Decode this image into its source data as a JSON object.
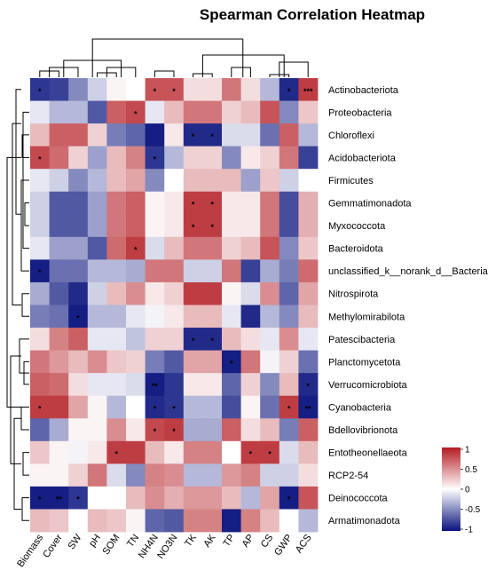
{
  "chart_data": {
    "type": "heatmap",
    "title": "Spearman Correlation Heatmap",
    "columns": [
      "Biomass",
      "Cover",
      "SW",
      "pH",
      "SOM",
      "TN",
      "NH4N",
      "NO3N",
      "TK",
      "AK",
      "TP",
      "AP",
      "CS",
      "GWP",
      "ACS"
    ],
    "rows": [
      "Actinobacteriota",
      "Proteobacteria",
      "Chloroflexi",
      "Acidobacteriota",
      "Firmicutes",
      "Gemmatimonadota",
      "Myxococcota",
      "Bacteroidota",
      "unclassified_k__norank_d__Bacteria",
      "Nitrospirota",
      "Methylomirabilota",
      "Patescibacteria",
      "Planctomycetota",
      "Verrucomicrobiota",
      "Cyanobacteria",
      "Bdellovibrionota",
      "Entotheonellaeota",
      "RCP2-54",
      "Deinococcota",
      "Armatimonadota"
    ],
    "values": [
      [
        -0.85,
        -0.8,
        -0.5,
        -0.2,
        0.05,
        0.0,
        0.75,
        0.75,
        0.15,
        0.15,
        0.6,
        0.15,
        -0.3,
        -0.9,
        0.85
      ],
      [
        -0.1,
        -0.3,
        -0.3,
        -0.7,
        0.7,
        0.8,
        -0.1,
        0.3,
        0.6,
        0.6,
        0.2,
        0.3,
        0.75,
        -0.5,
        0.25
      ],
      [
        0.3,
        0.7,
        0.7,
        0.2,
        -0.55,
        -0.65,
        -0.95,
        0.1,
        -0.9,
        -0.9,
        -0.15,
        -0.15,
        -0.6,
        0.7,
        -0.3
      ],
      [
        0.8,
        0.65,
        0.2,
        -0.4,
        0.3,
        0.55,
        -0.85,
        -0.3,
        0.2,
        0.2,
        -0.5,
        0.1,
        0.2,
        0.6,
        -0.8
      ],
      [
        -0.1,
        -0.2,
        -0.5,
        -0.3,
        0.3,
        0.4,
        -0.5,
        0.0,
        0.3,
        0.3,
        0.3,
        -0.4,
        0.25,
        -0.2,
        0.0
      ],
      [
        -0.2,
        -0.7,
        -0.7,
        -0.4,
        0.6,
        0.7,
        0.05,
        0.1,
        0.85,
        0.85,
        0.1,
        0.1,
        0.6,
        -0.75,
        0.35
      ],
      [
        -0.2,
        -0.7,
        -0.7,
        -0.4,
        0.6,
        0.7,
        0.05,
        0.1,
        0.85,
        0.85,
        0.1,
        0.1,
        0.6,
        -0.75,
        0.35
      ],
      [
        -0.1,
        -0.4,
        -0.4,
        -0.7,
        0.65,
        0.85,
        -0.15,
        0.3,
        0.6,
        0.6,
        0.2,
        0.3,
        0.75,
        -0.5,
        0.25
      ],
      [
        -0.95,
        -0.6,
        -0.6,
        -0.3,
        -0.3,
        -0.35,
        0.6,
        0.6,
        -0.2,
        -0.2,
        0.6,
        -0.8,
        -0.35,
        -0.55,
        0.65
      ],
      [
        -0.35,
        -0.7,
        -0.9,
        -0.2,
        0.3,
        0.5,
        0.1,
        0.2,
        0.85,
        0.85,
        0.05,
        -0.15,
        0.5,
        -0.65,
        0.4
      ],
      [
        -0.55,
        -0.6,
        -0.95,
        -0.3,
        -0.3,
        -0.1,
        -0.05,
        0.1,
        0.3,
        0.3,
        -0.1,
        -0.9,
        -0.3,
        -0.5,
        0.3
      ],
      [
        0.15,
        0.55,
        0.7,
        -0.1,
        -0.1,
        -0.25,
        0.2,
        0.2,
        -0.9,
        -0.9,
        0.3,
        0.15,
        -0.1,
        0.5,
        -0.1
      ],
      [
        0.6,
        0.45,
        0.3,
        0.5,
        0.25,
        0.2,
        -0.55,
        -0.7,
        0.4,
        0.4,
        -0.95,
        0.6,
        -0.05,
        0.2,
        -0.6
      ],
      [
        0.7,
        0.65,
        0.15,
        -0.1,
        -0.1,
        -0.15,
        -0.95,
        -0.85,
        0.1,
        0.1,
        -0.65,
        0.2,
        -0.5,
        0.3,
        -0.9
      ],
      [
        0.85,
        0.85,
        0.4,
        0.05,
        -0.3,
        0.0,
        -0.9,
        -0.85,
        -0.3,
        -0.3,
        -0.75,
        0.05,
        -0.6,
        0.85,
        -0.95
      ],
      [
        -0.65,
        -0.35,
        0.05,
        0.05,
        0.5,
        0.1,
        0.8,
        0.85,
        -0.35,
        -0.35,
        0.7,
        0.15,
        0.3,
        -0.55,
        0.7
      ],
      [
        0.25,
        0.05,
        -0.05,
        0.1,
        0.85,
        0.85,
        0.3,
        0.1,
        0.55,
        0.55,
        0.0,
        0.85,
        0.85,
        -0.15,
        0.3
      ],
      [
        0.05,
        0.05,
        0.2,
        0.6,
        -0.15,
        -0.5,
        0.55,
        0.5,
        -0.3,
        -0.3,
        0.45,
        0.55,
        -0.2,
        -0.2,
        0.15
      ],
      [
        -0.95,
        -0.95,
        -0.85,
        0.0,
        0.0,
        0.3,
        0.5,
        0.35,
        0.45,
        0.45,
        0.3,
        -0.3,
        0.4,
        -0.95,
        0.75
      ],
      [
        0.3,
        0.25,
        0.0,
        0.3,
        0.25,
        0.05,
        -0.65,
        -0.7,
        0.55,
        0.55,
        -0.95,
        0.55,
        0.3,
        0.0,
        -0.3
      ]
    ],
    "significance": [
      [
        "*",
        "",
        "",
        "",
        "",
        "",
        "*",
        "*",
        "",
        "",
        "",
        "",
        "",
        "*",
        "***"
      ],
      [
        "",
        "",
        "",
        "",
        "",
        "*",
        "",
        "",
        "",
        "",
        "",
        "",
        "",
        "",
        ""
      ],
      [
        "",
        "",
        "",
        "",
        "",
        "",
        "",
        "",
        "*",
        "*",
        "",
        "",
        "",
        "",
        ""
      ],
      [
        "*",
        "",
        "",
        "",
        "",
        "",
        "*",
        "",
        "",
        "",
        "",
        "",
        "",
        "",
        ""
      ],
      [
        "",
        "",
        "",
        "",
        "",
        "",
        "",
        "",
        "",
        "",
        "",
        "",
        "",
        "",
        ""
      ],
      [
        "",
        "",
        "",
        "",
        "",
        "",
        "",
        "",
        "*",
        "*",
        "",
        "",
        "",
        "",
        ""
      ],
      [
        "",
        "",
        "",
        "",
        "",
        "",
        "",
        "",
        "*",
        "*",
        "",
        "",
        "",
        "",
        ""
      ],
      [
        "",
        "",
        "",
        "",
        "",
        "*",
        "",
        "",
        "",
        "",
        "",
        "",
        "",
        "",
        ""
      ],
      [
        "*",
        "",
        "",
        "",
        "",
        "",
        "",
        "",
        "",
        "",
        "",
        "",
        "",
        "",
        ""
      ],
      [
        "",
        "",
        "",
        "",
        "",
        "",
        "",
        "",
        "",
        "",
        "",
        "",
        "",
        "",
        ""
      ],
      [
        "",
        "",
        "*",
        "",
        "",
        "",
        "",
        "",
        "",
        "",
        "",
        "",
        "",
        "",
        ""
      ],
      [
        "",
        "",
        "",
        "",
        "",
        "",
        "",
        "",
        "*",
        "*",
        "",
        "",
        "",
        "",
        ""
      ],
      [
        "",
        "",
        "",
        "",
        "",
        "",
        "",
        "",
        "",
        "",
        "*",
        "",
        "",
        "",
        ""
      ],
      [
        "",
        "",
        "",
        "",
        "",
        "",
        "**",
        "",
        "",
        "",
        "",
        "",
        "",
        "",
        "*"
      ],
      [
        "*",
        "",
        "",
        "",
        "",
        "",
        "*",
        "*",
        "",
        "",
        "",
        "",
        "",
        "*",
        "**"
      ],
      [
        "",
        "",
        "",
        "",
        "",
        "",
        "*",
        "*",
        "",
        "",
        "",
        "",
        "",
        "",
        ""
      ],
      [
        "",
        "",
        "",
        "",
        "*",
        "",
        "",
        "",
        "",
        "",
        "",
        "*",
        "*",
        "",
        ""
      ],
      [
        "",
        "",
        "",
        "",
        "",
        "",
        "",
        "",
        "",
        "",
        "",
        "",
        "",
        "",
        ""
      ],
      [
        "*",
        "**",
        "*",
        "",
        "",
        "",
        "",
        "",
        "",
        "",
        "",
        "",
        "",
        "*",
        ""
      ],
      [
        "",
        "",
        "",
        "",
        "",
        "",
        "",
        "",
        "",
        "",
        "",
        "",
        "",
        "",
        ""
      ]
    ],
    "color_scale": {
      "min": -1,
      "max": 1,
      "low": "#08127c",
      "mid": "#ffffff",
      "high": "#b31b22"
    },
    "legend": {
      "ticks": [
        "1",
        "0.5",
        "0",
        "-0.5",
        "-1"
      ],
      "placement": "right"
    },
    "dendrograms": {
      "rows": "left",
      "columns": "top"
    }
  }
}
